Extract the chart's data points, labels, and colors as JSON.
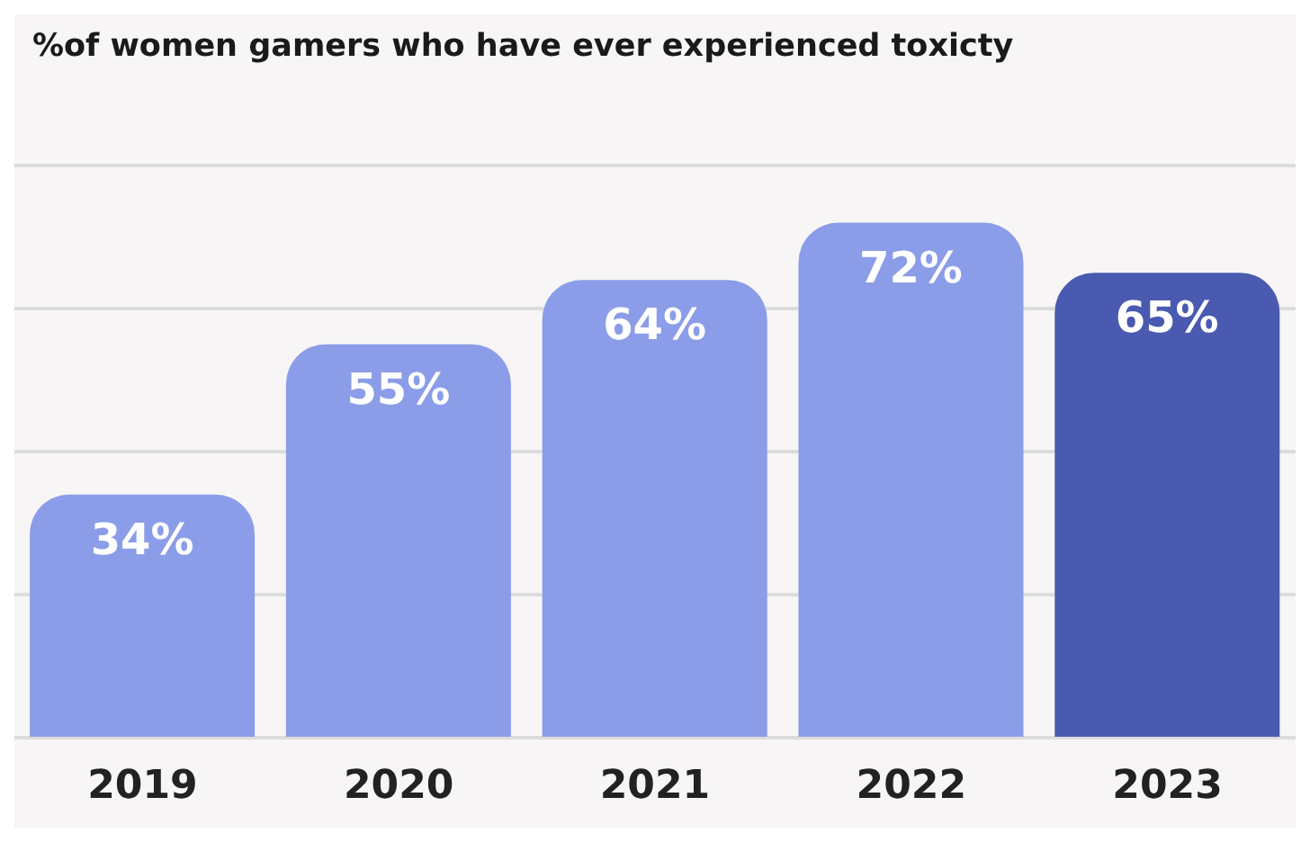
{
  "chart_data": {
    "type": "bar",
    "title": "%of women gamers who have ever experienced toxicty",
    "categories": [
      "2019",
      "2020",
      "2021",
      "2022",
      "2023"
    ],
    "values": [
      34,
      55,
      64,
      72,
      65
    ],
    "value_labels": [
      "34%",
      "55%",
      "64%",
      "72%",
      "65%"
    ],
    "colors": [
      "#8b9de8",
      "#8b9de8",
      "#8b9de8",
      "#8b9de8",
      "#4a5ab0"
    ],
    "ylim": [
      0,
      80
    ],
    "yticks": [
      {
        "value": 0,
        "label": null
      },
      {
        "value": 20,
        "label": null
      },
      {
        "value": 40,
        "label": null
      },
      {
        "value": 60,
        "label": null
      },
      {
        "value": 80,
        "label": null
      }
    ],
    "tick_labels": "x",
    "grid": "y"
  }
}
